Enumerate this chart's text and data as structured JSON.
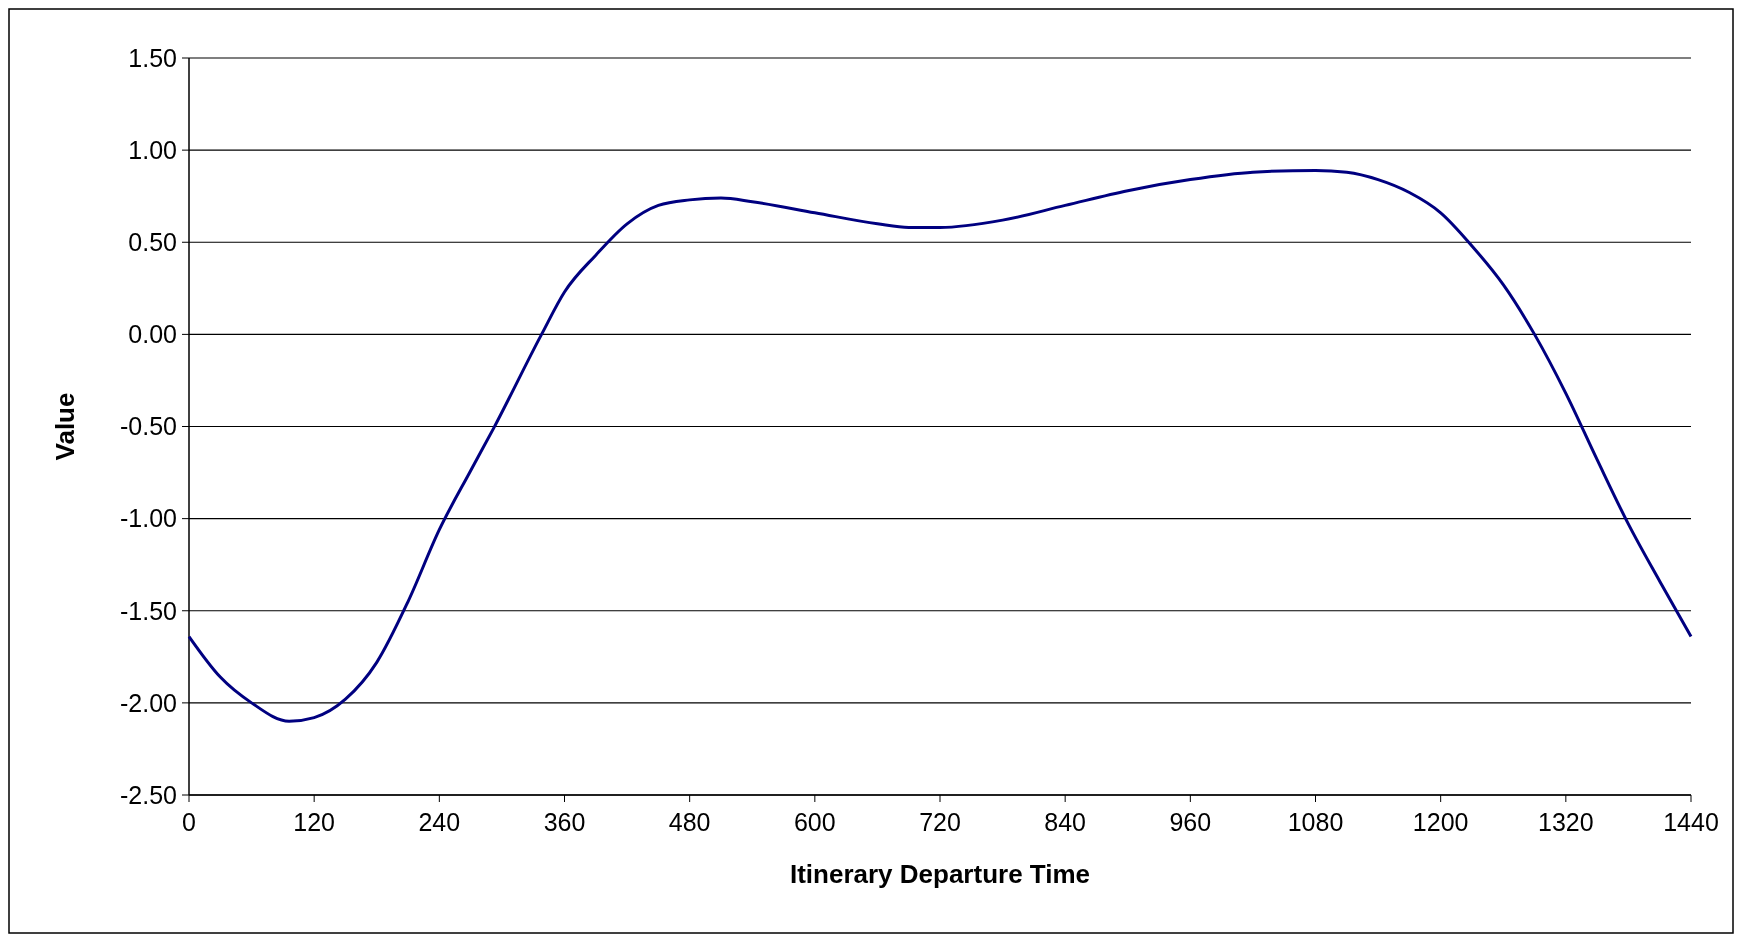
{
  "chart_data": {
    "type": "line",
    "xlabel": "Itinerary Departure Time",
    "ylabel": "Value",
    "x": [
      0,
      30,
      60,
      96,
      120,
      150,
      180,
      210,
      240,
      270,
      292,
      338,
      360,
      390,
      420,
      450,
      480,
      510,
      540,
      600,
      660,
      690,
      720,
      780,
      840,
      900,
      960,
      1020,
      1080,
      1110,
      1140,
      1170,
      1200,
      1230,
      1260,
      1290,
      1320,
      1350,
      1380,
      1410,
      1440
    ],
    "series": [
      {
        "color": "#000080",
        "values": [
          -1.64,
          -1.86,
          -2.0,
          -2.1,
          -2.08,
          -1.98,
          -1.78,
          -1.45,
          -1.06,
          -0.74,
          -0.51,
          0.0,
          0.23,
          0.43,
          0.6,
          0.7,
          0.73,
          0.74,
          0.72,
          0.66,
          0.6,
          0.58,
          0.58,
          0.62,
          0.7,
          0.78,
          0.84,
          0.88,
          0.89,
          0.88,
          0.84,
          0.77,
          0.66,
          0.48,
          0.27,
          0.0,
          -0.32,
          -0.68,
          -1.03,
          -1.34,
          -1.64
        ]
      }
    ],
    "xlim": [
      0,
      1440
    ],
    "xticks": [
      0,
      120,
      240,
      360,
      480,
      600,
      720,
      840,
      960,
      1080,
      1200,
      1320,
      1440
    ],
    "ylim": [
      -2.5,
      1.5
    ],
    "yticks": [
      {
        "value": -2.5,
        "label": "-2.50"
      },
      {
        "value": -2,
        "label": "-2.00"
      },
      {
        "value": -1.5,
        "label": "-1.50"
      },
      {
        "value": -1,
        "label": "-1.00"
      },
      {
        "value": -0.5,
        "label": "-0.50"
      },
      {
        "value": 0,
        "label": "0.00"
      },
      {
        "value": 0.5,
        "label": "0.50"
      },
      {
        "value": 1,
        "label": "1.00"
      },
      {
        "value": 1.5,
        "label": "1.50"
      }
    ],
    "grid": "y",
    "marker": "none",
    "line_style": "solid"
  }
}
